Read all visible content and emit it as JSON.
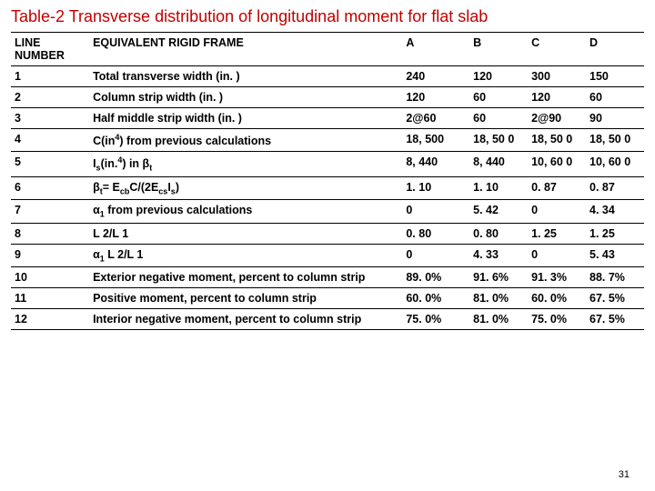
{
  "title": "Table-2   Transverse distribution of longitudinal moment for flat slab",
  "page_number": "31",
  "headers": {
    "line_number": "LINE NUMBER",
    "frame": "EQUIVALENT RIGID FRAME",
    "colA": "A",
    "colB": "B",
    "colC": "C",
    "colD": "D"
  },
  "rows": [
    {
      "n": "1",
      "label": "Total transverse width (in. )",
      "a": "240",
      "b": "120",
      "c": "300",
      "d": "150"
    },
    {
      "n": "2",
      "label": "Column strip width (in. )",
      "a": "120",
      "b": "60",
      "c": "120",
      "d": "60"
    },
    {
      "n": "3",
      "label": "Half middle strip width (in. )",
      "a": "2@60",
      "b": "60",
      "c": "2@90",
      "d": "90"
    },
    {
      "n": "4",
      "label_html": "C(in<span class='sup'>4</span>) from previous calculations",
      "a": "18, 500",
      "b": "18, 50 0",
      "c": "18, 50 0",
      "d": "18, 50 0"
    },
    {
      "n": "5",
      "label_html": "I<span class='sub'>s</span>(in.<span class='sup'>4</span>) in β<span class='sub'>t</span>",
      "a": "8, 440",
      "b": "8, 440",
      "c": "10, 60 0",
      "d": "10, 60 0"
    },
    {
      "n": "6",
      "label_html": "β<span class='sub'>t</span>= E<span class='sub'>cb</span>C/(2E<span class='sub'>cs</span>I<span class='sub'>s</span>)",
      "a": "1. 10",
      "b": "1. 10",
      "c": "0. 87",
      "d": "0. 87"
    },
    {
      "n": "7",
      "label_html": "α<span class='sub'>1</span> from previous calculations",
      "a": "0",
      "b": "5. 42",
      "c": "0",
      "d": "4. 34"
    },
    {
      "n": "8",
      "label_html": "L 2/L 1",
      "a": "0. 80",
      "b": "0. 80",
      "c": "1. 25",
      "d": "1. 25"
    },
    {
      "n": "9",
      "label_html": "α<span class='sub'>1</span> L 2/L 1",
      "a": "0",
      "b": "4. 33",
      "c": "0",
      "d": "5. 43"
    },
    {
      "n": "10",
      "label": "Exterior negative moment, percent to column strip",
      "a": "89. 0%",
      "b": "91. 6%",
      "c": "91. 3%",
      "d": "88. 7%"
    },
    {
      "n": "11",
      "label": "Positive moment, percent to column strip",
      "a": "60. 0%",
      "b": "81. 0%",
      "c": "60. 0%",
      "d": "67. 5%"
    },
    {
      "n": "12",
      "label": "Interior negative moment, percent to column strip",
      "a": "75. 0%",
      "b": "81. 0%",
      "c": "75. 0%",
      "d": "67. 5%"
    }
  ],
  "style": {
    "title_color": "#c00000",
    "border_color": "#000000",
    "font_family": "Arial",
    "title_fontsize": 18,
    "body_fontsize": 12.5
  }
}
